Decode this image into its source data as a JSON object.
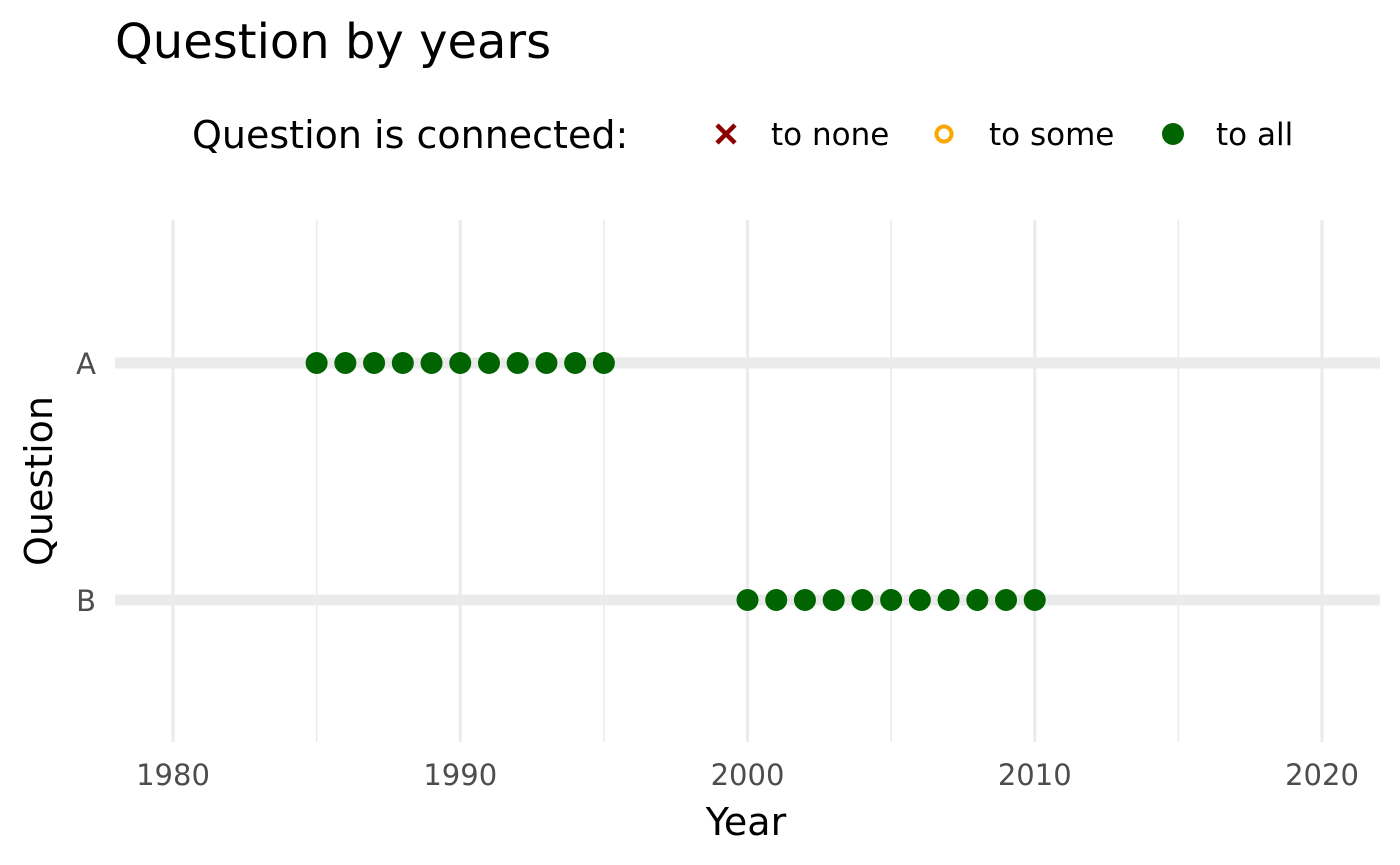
{
  "chart_data": {
    "type": "scatter",
    "title": "Question by years",
    "xlabel": "Year",
    "ylabel": "Question",
    "xlim": [
      1978,
      2022
    ],
    "x_ticks": [
      1980,
      1990,
      2000,
      2010,
      2020
    ],
    "x_minor_ticks": [
      1985,
      1995,
      2005,
      2015
    ],
    "categories": [
      "A",
      "B"
    ],
    "grid": true,
    "legend": {
      "title": "Question is connected:",
      "position": "top",
      "items": [
        {
          "label": "to none",
          "color": "#8b0000",
          "shape": "cross"
        },
        {
          "label": "to some",
          "color": "#ffa500",
          "shape": "open-circle"
        },
        {
          "label": "to all",
          "color": "#006400",
          "shape": "filled-circle"
        }
      ]
    },
    "series": [
      {
        "category": "A",
        "status": "to all",
        "x": [
          1985,
          1986,
          1987,
          1988,
          1989,
          1990,
          1991,
          1992,
          1993,
          1994,
          1995
        ]
      },
      {
        "category": "B",
        "status": "to all",
        "x": [
          2000,
          2001,
          2002,
          2003,
          2004,
          2005,
          2006,
          2007,
          2008,
          2009,
          2010
        ]
      }
    ]
  }
}
